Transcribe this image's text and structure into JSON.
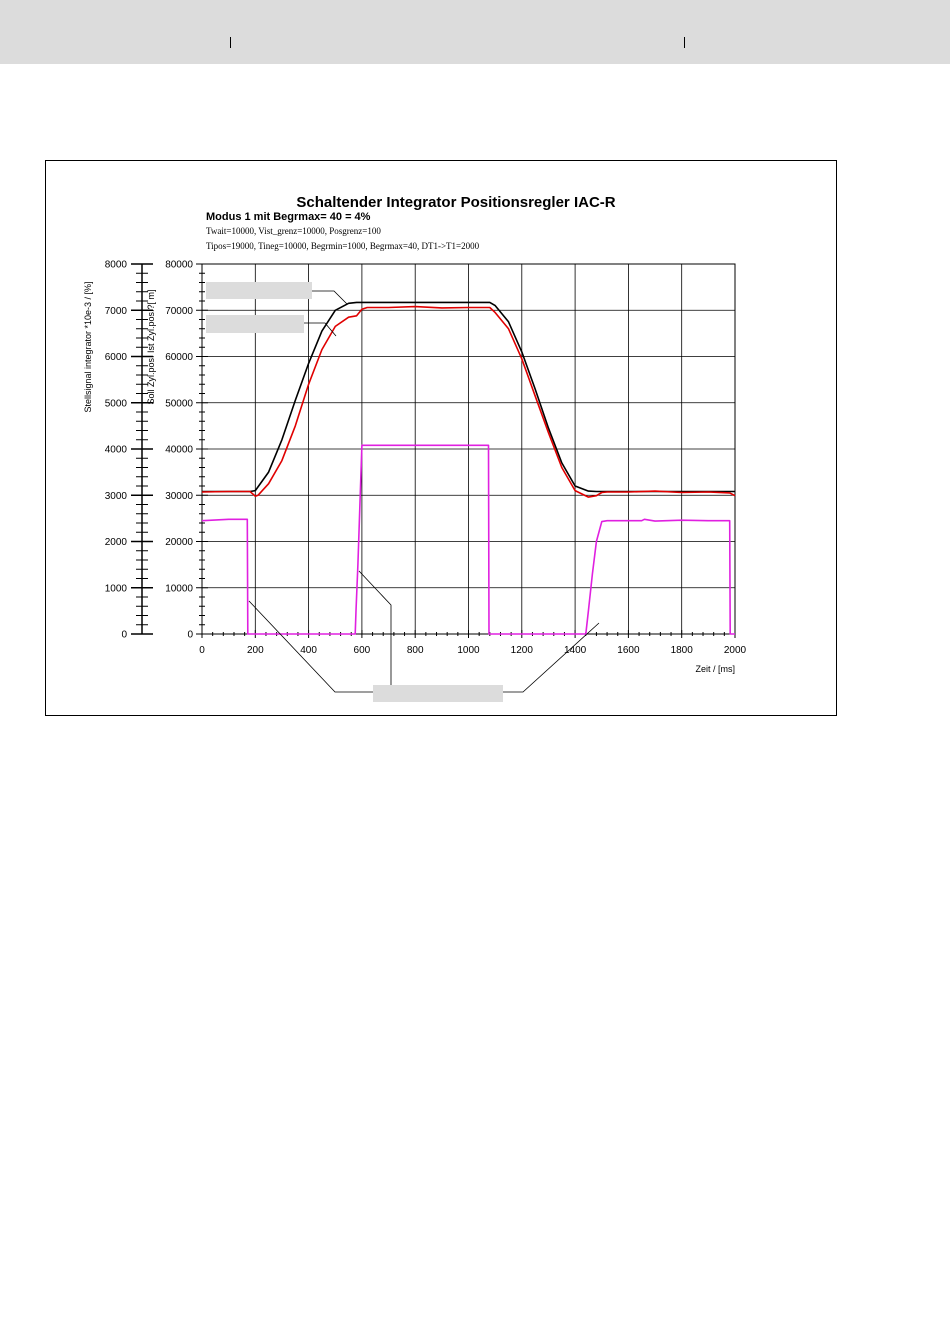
{
  "header": {
    "separators": 2
  },
  "chart_data": {
    "type": "line",
    "title": "Schaltender Integrator Positionsregler IAC-R",
    "subtitle": "Modus 1 mit Begrmax= 40 = 4%",
    "params_line1": "Twait=10000, Vist_grenz=10000, Posgrenz=100",
    "params_line2": "Tipos=19000, Tineg=10000, Begrmin=1000, Begrmax=40, DT1->T1=2000",
    "xlabel": "Zeit / [ms]",
    "ylabel_left": "Stellsignal integrator *10e-3 / [%]",
    "ylabel_right": "Soll Zyl.pos. Ist Zyl.pos.?[  m]",
    "xlim": [
      0,
      2000
    ],
    "ylim_left": [
      0,
      8000
    ],
    "ylim_right": [
      0,
      80000
    ],
    "x_ticks": [
      "0",
      "200",
      "400",
      "600",
      "800",
      "1000",
      "1200",
      "1400",
      "1600",
      "1800",
      "2000"
    ],
    "y_ticks_left": [
      "0",
      "1000",
      "2000",
      "3000",
      "4000",
      "5000",
      "6000",
      "7000",
      "8000"
    ],
    "y_ticks_right": [
      "0",
      "10000",
      "20000",
      "30000",
      "40000",
      "50000",
      "60000",
      "70000",
      "80000"
    ],
    "grid": true,
    "colors": {
      "soll": "#000000",
      "ist": "#e00000",
      "integrator": "#e020e0",
      "callout_box": "#dcdcdc"
    },
    "series": [
      {
        "key": "soll",
        "axis": "right",
        "x": [
          0,
          180,
          200,
          250,
          300,
          350,
          400,
          450,
          500,
          550,
          580,
          600,
          700,
          800,
          900,
          1000,
          1080,
          1100,
          1150,
          1200,
          1250,
          1300,
          1350,
          1400,
          1450,
          1480,
          1500,
          1600,
          1700,
          1800,
          1900,
          2000
        ],
        "y": [
          30800,
          30800,
          31000,
          35000,
          42000,
          50500,
          58500,
          65500,
          70000,
          71500,
          71700,
          71700,
          71700,
          71700,
          71700,
          71700,
          71700,
          71000,
          67500,
          61000,
          53000,
          44500,
          37000,
          32000,
          30900,
          30800,
          30800,
          30800,
          30800,
          30800,
          30800,
          30800
        ]
      },
      {
        "key": "ist",
        "axis": "right",
        "x": [
          0,
          100,
          180,
          200,
          210,
          250,
          300,
          350,
          400,
          450,
          500,
          550,
          580,
          600,
          620,
          700,
          800,
          900,
          1000,
          1080,
          1100,
          1150,
          1200,
          1250,
          1300,
          1350,
          1400,
          1450,
          1480,
          1500,
          1520,
          1600,
          1700,
          1800,
          1900,
          1980,
          2000
        ],
        "y": [
          30700,
          30800,
          30800,
          29800,
          30000,
          32500,
          37500,
          45000,
          54000,
          61500,
          66500,
          68500,
          68800,
          70200,
          70600,
          70600,
          70800,
          70500,
          70600,
          70600,
          69500,
          66000,
          59500,
          51500,
          43500,
          36000,
          31000,
          29600,
          29900,
          30600,
          30700,
          30700,
          30900,
          30600,
          30700,
          30500,
          29900
        ]
      },
      {
        "key": "integrator",
        "axis": "left",
        "x": [
          0,
          100,
          170,
          172,
          178,
          180,
          500,
          575,
          578,
          585,
          600,
          700,
          800,
          900,
          1000,
          1075,
          1077,
          1080,
          1400,
          1440,
          1450,
          1465,
          1480,
          1500,
          1520,
          1600,
          1650,
          1660,
          1700,
          1800,
          1900,
          1980,
          1982,
          1985,
          2000
        ],
        "y": [
          2450,
          2480,
          2480,
          0,
          0,
          0,
          0,
          0,
          500,
          1500,
          4080,
          4080,
          4080,
          4080,
          4080,
          4080,
          0,
          0,
          0,
          0,
          500,
          1300,
          2000,
          2430,
          2450,
          2450,
          2450,
          2480,
          2440,
          2460,
          2450,
          2450,
          0,
          0,
          0
        ]
      }
    ]
  }
}
